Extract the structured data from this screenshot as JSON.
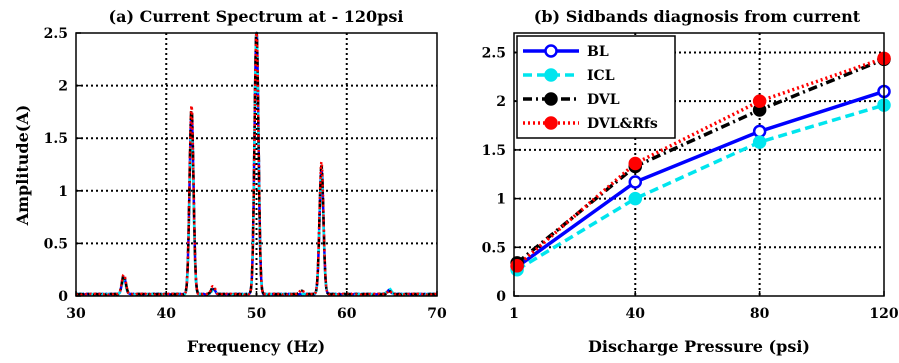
{
  "chart_data": [
    {
      "type": "line",
      "title": "(a) Current Spectrum at - 120psi",
      "xlabel": "Frequency (Hz)",
      "ylabel": "Amplitude(A)",
      "xlim": [
        30,
        70
      ],
      "ylim": [
        0,
        2.5
      ],
      "xticks": [
        30,
        40,
        50,
        60,
        70
      ],
      "yticks": [
        0,
        0.5,
        1,
        1.5,
        2,
        2.5
      ],
      "xtick_labels": [
        "30",
        "40",
        "50",
        "60",
        "70"
      ],
      "ytick_labels": [
        "0",
        "0.5",
        "1",
        "1.5",
        "2",
        "2.5"
      ],
      "grid": true,
      "series": [
        {
          "color": "#0000ff",
          "dash": "solid",
          "peaks": [
            [
              35.3,
              0.16
            ],
            [
              42.8,
              1.72
            ],
            [
              45.2,
              0.05
            ],
            [
              50.0,
              2.5
            ],
            [
              57.2,
              1.18
            ],
            [
              64.7,
              0.04
            ]
          ]
        },
        {
          "color": "#00e5ee",
          "dash": "dashed",
          "peaks": [
            [
              35.3,
              0.14
            ],
            [
              42.8,
              1.55
            ],
            [
              45.2,
              0.04
            ],
            [
              50.0,
              2.5
            ],
            [
              57.2,
              1.12
            ],
            [
              64.7,
              0.06
            ]
          ]
        },
        {
          "color": "#000000",
          "dash": "dashdot",
          "peaks": [
            [
              35.3,
              0.18
            ],
            [
              42.8,
              1.78
            ],
            [
              45.2,
              0.07
            ],
            [
              50.0,
              2.5
            ],
            [
              55.0,
              0.03
            ],
            [
              57.2,
              1.22
            ],
            [
              64.7,
              0.03
            ]
          ]
        },
        {
          "color": "#ff0000",
          "dash": "dotted",
          "peaks": [
            [
              35.3,
              0.19
            ],
            [
              42.8,
              1.79
            ],
            [
              45.2,
              0.08
            ],
            [
              50.0,
              2.5
            ],
            [
              55.0,
              0.04
            ],
            [
              57.2,
              1.26
            ],
            [
              64.7,
              0.03
            ]
          ]
        }
      ]
    },
    {
      "type": "line",
      "title": "(b) Sidbands diagnosis from current",
      "xlabel": "Discharge Pressure (psi)",
      "ylabel": "",
      "xlim": [
        1,
        120
      ],
      "ylim": [
        0,
        2.7
      ],
      "xticks": [
        1,
        40,
        80,
        120
      ],
      "yticks": [
        0,
        0.5,
        1,
        1.5,
        2,
        2.5
      ],
      "xtick_labels": [
        "1",
        "40",
        "80",
        "120"
      ],
      "ytick_labels": [
        "0",
        "0.5",
        "1",
        "1.5",
        "2",
        "2.5"
      ],
      "grid": true,
      "legend": "top-left",
      "x": [
        2,
        40,
        80,
        120
      ],
      "series": [
        {
          "name": "BL",
          "color": "#0000ff",
          "dash": "solid",
          "marker": "open-circle",
          "values": [
            0.3,
            1.17,
            1.69,
            2.1
          ]
        },
        {
          "name": "ICL",
          "color": "#00e5ee",
          "dash": "dashed",
          "marker": "filled-circle",
          "values": [
            0.27,
            1.0,
            1.58,
            1.96
          ]
        },
        {
          "name": "DVL",
          "color": "#000000",
          "dash": "dashdot",
          "marker": "filled-circle",
          "values": [
            0.34,
            1.33,
            1.91,
            2.43
          ]
        },
        {
          "name": "DVL&Rfs",
          "color": "#ff0000",
          "dash": "dotted",
          "marker": "filled-circle",
          "values": [
            0.31,
            1.36,
            2.0,
            2.44
          ]
        }
      ]
    }
  ]
}
